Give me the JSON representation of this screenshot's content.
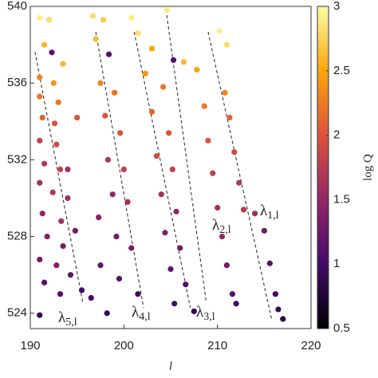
{
  "chart_data": {
    "type": "scatter",
    "x_label": "l",
    "colorbar_label": "log Q",
    "xlim": [
      190,
      220
    ],
    "xticks": [
      190,
      200,
      210,
      220
    ],
    "ylim": [
      523.2,
      540
    ],
    "yticks": [
      524,
      528,
      532,
      536,
      540
    ],
    "clim": [
      0.5,
      3
    ],
    "cticks": [
      0.5,
      1,
      1.5,
      2,
      2.5,
      3
    ],
    "colormap": [
      "#000004",
      "#420a68",
      "#932667",
      "#dd513a",
      "#fca50a",
      "#fcffa4"
    ],
    "series": [
      {
        "x": [
          191,
          192,
          191.5,
          192.3,
          191,
          192.5,
          191,
          193,
          191.3,
          192.6,
          191,
          192.8,
          191.5,
          193.2,
          191,
          192.4,
          194,
          191.3,
          193.3,
          191.8,
          193.5,
          191,
          192.8,
          194.3,
          191.5,
          193.2,
          191,
          195.5,
          194.8,
          194,
          195,
          193.5,
          196.7,
          197.8,
          197,
          198.4,
          197.5,
          199,
          198,
          199.6,
          198.3,
          200,
          198.8,
          200.4,
          197.3,
          199.2,
          200.8,
          197.5,
          199.5,
          196.5,
          198.2,
          201.5,
          200.8,
          201.5,
          203,
          202.3,
          204.2,
          203,
          204.8,
          203.5,
          205.2,
          204,
          205.6,
          204.4,
          206,
          205,
          206.6,
          205.4,
          207.5,
          204.6,
          205.3,
          206.4,
          210.2,
          211,
          207.8,
          210.8,
          208.6,
          211.3,
          209,
          211.8,
          209.5,
          212.3,
          210,
          212.8,
          210.5,
          214,
          211,
          215,
          211.6,
          215.6,
          212,
          216.2,
          217,
          216.5
        ],
        "values": [
          539.4,
          539.3,
          538,
          537.6,
          536.3,
          536,
          535.3,
          535,
          534.2,
          533.9,
          533,
          532.8,
          531.8,
          531.5,
          530.8,
          530.3,
          530,
          529.2,
          528.8,
          528,
          527.5,
          526.8,
          526.5,
          526,
          525.6,
          525,
          523.9,
          525.2,
          528.3,
          531.5,
          534.2,
          537,
          539.5,
          539.3,
          538.3,
          537.5,
          536,
          535.5,
          534.3,
          533.4,
          532,
          531.5,
          530.2,
          529.8,
          529,
          528,
          527.4,
          526.5,
          525.8,
          524.8,
          524,
          525,
          539.4,
          538.6,
          537.8,
          536.5,
          535.8,
          534.5,
          533.4,
          532.2,
          531.5,
          530.2,
          529.3,
          528.2,
          527.4,
          526.3,
          525.5,
          524.5,
          524.1,
          539.8,
          537.2,
          537.1,
          538.7,
          538,
          536.7,
          535.5,
          534.8,
          534.2,
          533,
          532.4,
          531.3,
          530.8,
          529.5,
          529.4,
          528,
          529.2,
          526.5,
          528.3,
          525,
          526.6,
          524.5,
          525,
          523.7,
          524.2
        ],
        "color_values": [
          2.9,
          2.8,
          2.6,
          1.2,
          2.3,
          2.4,
          2.2,
          2.2,
          2.1,
          2.0,
          1.8,
          1.9,
          1.7,
          1.8,
          1.6,
          1.7,
          1.6,
          1.5,
          1.6,
          1.4,
          1.3,
          1.3,
          1.4,
          1.2,
          1.1,
          1.1,
          0.9,
          1.0,
          1.3,
          1.6,
          2.0,
          2.6,
          2.8,
          2.7,
          2.6,
          1.1,
          2.3,
          2.2,
          2.0,
          2.0,
          1.7,
          1.8,
          1.5,
          1.6,
          1.4,
          1.3,
          1.3,
          1.2,
          1.1,
          1.0,
          0.9,
          1.0,
          2.9,
          2.8,
          2.5,
          2.4,
          2.2,
          2.1,
          2.0,
          1.9,
          1.8,
          1.6,
          1.5,
          1.4,
          1.3,
          1.2,
          1.1,
          1.0,
          0.9,
          2.9,
          1.1,
          2.6,
          2.9,
          2.8,
          2.5,
          2.3,
          2.2,
          2.1,
          2.0,
          1.9,
          1.8,
          1.7,
          1.6,
          1.7,
          1.5,
          1.6,
          1.3,
          1.3,
          1.1,
          1.1,
          1.0,
          1.0,
          0.8,
          0.9
        ]
      }
    ],
    "fit_lines": [
      {
        "x": [
          209.0,
          215.8
        ],
        "y": [
          538.67,
          523.67
        ]
      },
      {
        "x": [
          204.5,
          208.8
        ],
        "y": [
          539.83,
          524.58
        ]
      },
      {
        "x": [
          201.1,
          207.1
        ],
        "y": [
          538.67,
          524.29
        ]
      },
      {
        "x": [
          197.0,
          202.1
        ],
        "y": [
          538.67,
          524.29
        ]
      },
      {
        "x": [
          190.5,
          195.6
        ],
        "y": [
          537.63,
          524.58
        ]
      }
    ],
    "annotations": [
      {
        "text": "λ",
        "subscript": "1,l"
      },
      {
        "text": "λ",
        "subscript": "2,l"
      },
      {
        "text": "λ",
        "subscript": "3,l"
      },
      {
        "text": "λ",
        "subscript": "4,l"
      },
      {
        "text": "λ",
        "subscript": "5,l"
      }
    ]
  }
}
